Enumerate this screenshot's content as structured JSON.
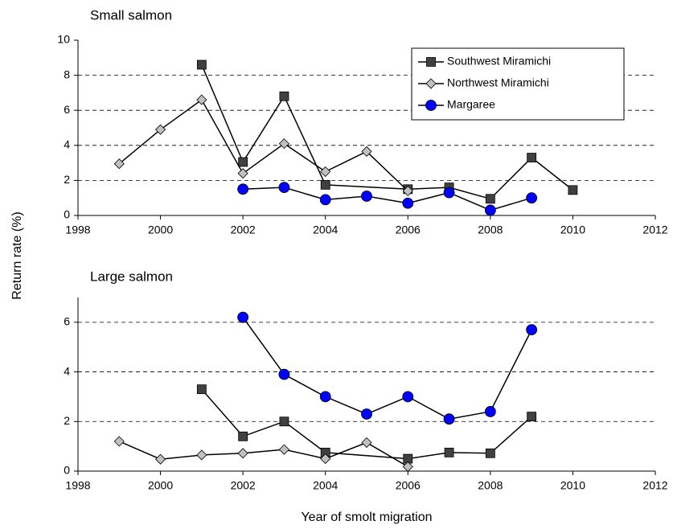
{
  "chart_data": [
    {
      "type": "line",
      "title": "Small salmon",
      "ylabel": "Return rate (%)",
      "xlim": [
        1998,
        2012
      ],
      "xticks": [
        1998,
        2000,
        2002,
        2004,
        2006,
        2008,
        2010,
        2012
      ],
      "ylim": [
        0,
        10
      ],
      "yticks": [
        0,
        2,
        4,
        6,
        8,
        10
      ],
      "grid": true,
      "legend": "upper right",
      "series": [
        {
          "name": "Southwest Miramichi",
          "color": "#404040",
          "marker": "square",
          "x": [
            2001,
            2002,
            2003,
            2004,
            2006,
            2007,
            2008,
            2009,
            2010
          ],
          "values": [
            8.6,
            3.05,
            6.8,
            1.75,
            1.5,
            1.6,
            0.95,
            3.3,
            1.45
          ]
        },
        {
          "name": "Northwest Miramichi",
          "color": "#c0c0c0",
          "marker": "diamond",
          "x": [
            1999,
            2000,
            2001,
            2002,
            2003,
            2004,
            2005,
            2006
          ],
          "values": [
            2.95,
            4.9,
            6.6,
            2.4,
            4.1,
            2.5,
            3.65,
            1.4
          ]
        },
        {
          "name": "Margaree",
          "color": "#0000ff",
          "marker": "circle",
          "x": [
            2002,
            2003,
            2004,
            2005,
            2006,
            2007,
            2008,
            2009
          ],
          "values": [
            1.5,
            1.6,
            0.9,
            1.1,
            0.7,
            1.3,
            0.3,
            1.0
          ]
        }
      ]
    },
    {
      "type": "line",
      "title": "Large salmon",
      "xlabel": "Year of smolt migration",
      "xlim": [
        1998,
        2012
      ],
      "xticks": [
        1998,
        2000,
        2002,
        2004,
        2006,
        2008,
        2010,
        2012
      ],
      "ylim": [
        0,
        7
      ],
      "yticks": [
        0,
        2,
        4,
        6
      ],
      "grid": true,
      "series": [
        {
          "color": "#404040",
          "marker": "square",
          "x": [
            2001,
            2002,
            2003,
            2004,
            2006,
            2007,
            2008,
            2009
          ],
          "values": [
            3.3,
            1.4,
            2.0,
            0.75,
            0.5,
            0.75,
            0.72,
            2.2
          ]
        },
        {
          "color": "#c0c0c0",
          "marker": "diamond",
          "x": [
            1999,
            2000,
            2001,
            2002,
            2003,
            2004,
            2005,
            2006
          ],
          "values": [
            1.2,
            0.48,
            0.65,
            0.72,
            0.87,
            0.5,
            1.15,
            0.18
          ]
        },
        {
          "color": "#0000ff",
          "marker": "circle",
          "x": [
            2002,
            2003,
            2004,
            2005,
            2006,
            2007,
            2008,
            2009
          ],
          "values": [
            6.2,
            3.9,
            3.0,
            2.3,
            3.0,
            2.1,
            2.4,
            5.7
          ]
        }
      ]
    }
  ]
}
